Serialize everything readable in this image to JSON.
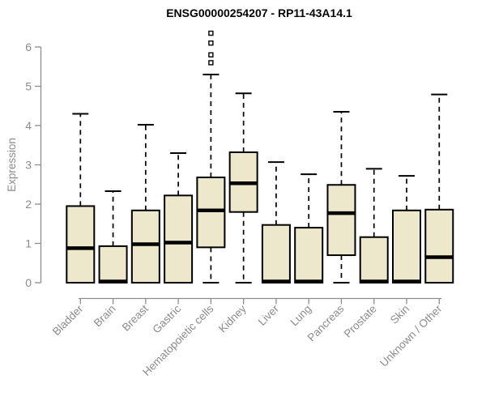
{
  "chart_data": {
    "type": "boxplot",
    "title": "ENSG00000254207 - RP11-43A14.1",
    "xlabel": "",
    "ylabel": "Expression",
    "ylim": [
      0,
      6
    ],
    "yticks": [
      0,
      1,
      2,
      3,
      4,
      5,
      6
    ],
    "grid": false,
    "legend": null,
    "categories": [
      "Bladder",
      "Brain",
      "Breast",
      "Gastric",
      "Hematopoietic cells",
      "Kidney",
      "Liver",
      "Lung",
      "Pancreas",
      "Prostate",
      "Skin",
      "Unknown / Other"
    ],
    "series": [
      {
        "name": "Bladder",
        "whislo": 0,
        "q1": 0,
        "med": 0.88,
        "q3": 1.95,
        "whishi": 4.3,
        "outliers": []
      },
      {
        "name": "Brain",
        "whislo": 0,
        "q1": 0,
        "med": 0.03,
        "q3": 0.93,
        "whishi": 2.33,
        "outliers": []
      },
      {
        "name": "Breast",
        "whislo": 0,
        "q1": 0,
        "med": 0.98,
        "q3": 1.84,
        "whishi": 4.02,
        "outliers": []
      },
      {
        "name": "Gastric",
        "whislo": 0,
        "q1": 0,
        "med": 1.02,
        "q3": 2.22,
        "whishi": 3.3,
        "outliers": []
      },
      {
        "name": "Hematopoietic cells",
        "whislo": 0,
        "q1": 0.9,
        "med": 1.84,
        "q3": 2.68,
        "whishi": 5.3,
        "outliers": [
          5.6,
          5.8,
          6.1,
          6.35
        ]
      },
      {
        "name": "Kidney",
        "whislo": 0,
        "q1": 1.8,
        "med": 2.53,
        "q3": 3.32,
        "whishi": 4.82,
        "outliers": []
      },
      {
        "name": "Liver",
        "whislo": 0,
        "q1": 0,
        "med": 0.03,
        "q3": 1.47,
        "whishi": 3.07,
        "outliers": []
      },
      {
        "name": "Lung",
        "whislo": 0,
        "q1": 0,
        "med": 0.03,
        "q3": 1.4,
        "whishi": 2.76,
        "outliers": []
      },
      {
        "name": "Pancreas",
        "whislo": 0,
        "q1": 0.7,
        "med": 1.77,
        "q3": 2.49,
        "whishi": 4.35,
        "outliers": []
      },
      {
        "name": "Prostate",
        "whislo": 0,
        "q1": 0,
        "med": 0.03,
        "q3": 1.16,
        "whishi": 2.9,
        "outliers": []
      },
      {
        "name": "Skin",
        "whislo": 0,
        "q1": 0,
        "med": 0.03,
        "q3": 1.84,
        "whishi": 2.72,
        "outliers": []
      },
      {
        "name": "Unknown / Other",
        "whislo": 0,
        "q1": 0,
        "med": 0.65,
        "q3": 1.86,
        "whishi": 4.79,
        "outliers": []
      }
    ],
    "colors": {
      "background": "#FFFFFF",
      "box_fill": "#EDE7CB",
      "box_border": "#000000",
      "median": "#000000",
      "whisker": "#000000",
      "outlier_fill": "#FFFFFF",
      "axis": "#8C8C8C",
      "tick_label": "#8A8A8A",
      "title": "#000000"
    }
  }
}
